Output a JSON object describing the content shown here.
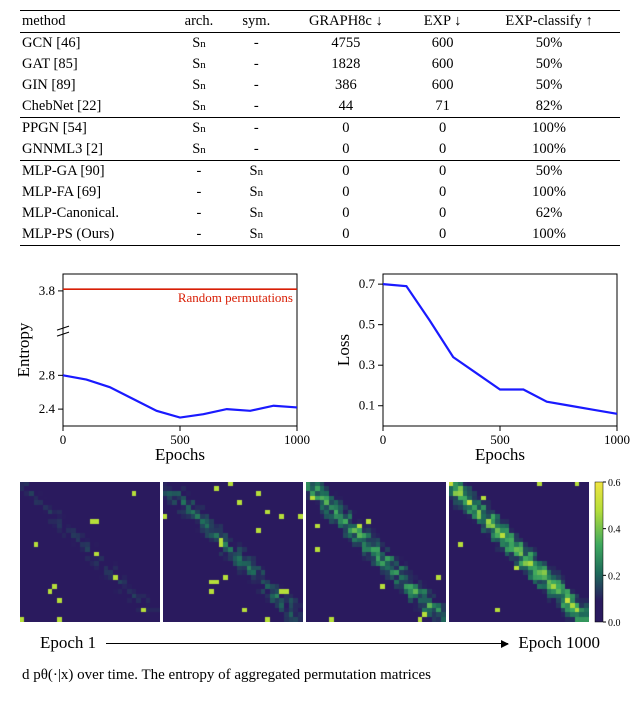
{
  "table": {
    "columns": [
      "method",
      "arch.",
      "sym.",
      "GRAPH8c ↓",
      "EXP ↓",
      "EXP-classify ↑"
    ],
    "groups": [
      [
        {
          "method": "GCN [46]",
          "arch": "Sn",
          "sym": "-",
          "g8c": "4755",
          "exp": "600",
          "cls": "50%",
          "bold": false
        },
        {
          "method": "GAT [85]",
          "arch": "Sn",
          "sym": "-",
          "g8c": "1828",
          "exp": "600",
          "cls": "50%",
          "bold": false
        },
        {
          "method": "GIN [89]",
          "arch": "Sn",
          "sym": "-",
          "g8c": "386",
          "exp": "600",
          "cls": "50%",
          "bold": false
        },
        {
          "method": "ChebNet [22]",
          "arch": "Sn",
          "sym": "-",
          "g8c": "44",
          "exp": "71",
          "cls": "82%",
          "bold": false
        }
      ],
      [
        {
          "method": "PPGN [54]",
          "arch": "Sn",
          "sym": "-",
          "g8c": "0",
          "exp": "0",
          "cls": "100%",
          "bold": true
        },
        {
          "method": "GNNML3 [2]",
          "arch": "Sn",
          "sym": "-",
          "g8c": "0",
          "exp": "0",
          "cls": "100%",
          "bold": true
        }
      ],
      [
        {
          "method": "MLP-GA [90]",
          "arch": "-",
          "sym": "Sn",
          "g8c": "0",
          "exp": "0",
          "cls": "50%",
          "bold": false
        },
        {
          "method": "MLP-FA [69]",
          "arch": "-",
          "sym": "Sn",
          "g8c": "0",
          "exp": "0",
          "cls": "100%",
          "bold": true
        },
        {
          "method": "MLP-Canonical.",
          "arch": "-",
          "sym": "Sn",
          "g8c": "0",
          "exp": "0",
          "cls": "62%",
          "bold": false
        },
        {
          "method": "MLP-PS (Ours)",
          "arch": "-",
          "sym": "Sn",
          "g8c": "0",
          "exp": "0",
          "cls": "100%",
          "bold": true
        }
      ]
    ]
  },
  "entropy_chart": {
    "type": "line",
    "xlabel": "Epochs",
    "ylabel": "Entropy",
    "xlim": [
      0,
      1000
    ],
    "xticks": [
      0,
      500,
      1000
    ],
    "ylim": [
      2.2,
      4.0
    ],
    "yticks": [
      2.4,
      2.8,
      3.8
    ],
    "line_color": "#1a1aff",
    "line_width": 2.2,
    "ref_color": "#d81e05",
    "ref_y": 3.82,
    "ref_label": "Random permutations",
    "grid_color": "#000000",
    "bg": "#ffffff",
    "x": [
      0,
      100,
      200,
      300,
      400,
      500,
      600,
      700,
      800,
      900,
      1000
    ],
    "y": [
      2.8,
      2.75,
      2.66,
      2.52,
      2.38,
      2.3,
      2.34,
      2.4,
      2.38,
      2.44,
      2.42
    ],
    "label_fontsize": 17,
    "tick_fontsize": 13
  },
  "loss_chart": {
    "type": "line",
    "xlabel": "Epochs",
    "ylabel": "Loss",
    "xlim": [
      0,
      1000
    ],
    "xticks": [
      0,
      500,
      1000
    ],
    "ylim": [
      0.0,
      0.75
    ],
    "yticks": [
      0.1,
      0.3,
      0.5,
      0.7
    ],
    "line_color": "#1a1aff",
    "line_width": 2.2,
    "grid_color": "#000000",
    "bg": "#ffffff",
    "x": [
      0,
      100,
      200,
      300,
      400,
      500,
      600,
      700,
      800,
      900,
      1000
    ],
    "y": [
      0.7,
      0.69,
      0.52,
      0.34,
      0.26,
      0.18,
      0.18,
      0.12,
      0.1,
      0.08,
      0.06
    ],
    "label_fontsize": 17,
    "tick_fontsize": 13
  },
  "heatmaps": {
    "count": 4,
    "cell_size": 140,
    "colormap_stops": [
      {
        "v": 0.0,
        "c": "#2a1a5e"
      },
      {
        "v": 0.15,
        "c": "#2a1a5e"
      },
      {
        "v": 0.35,
        "c": "#1e6a5a"
      },
      {
        "v": 0.55,
        "c": "#3ea85e"
      },
      {
        "v": 0.8,
        "c": "#b6de3a"
      },
      {
        "v": 1.0,
        "c": "#f0e442"
      }
    ],
    "cbar_ticks": [
      0,
      0.2,
      0.4,
      0.6
    ],
    "caption_left": "Epoch 1",
    "caption_right": "Epoch 1000",
    "seeds": [
      11,
      22,
      33,
      44
    ],
    "diag_strength": [
      0.15,
      0.35,
      0.6,
      0.85
    ]
  },
  "bottom_fragment": "d pθ(·|x) over time. The entropy of aggregated permutation matrices"
}
